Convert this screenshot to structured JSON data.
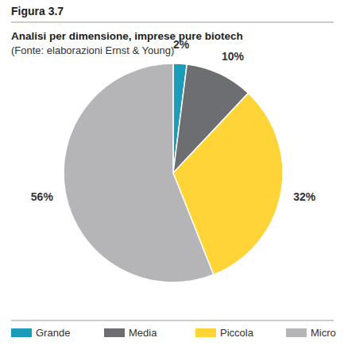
{
  "chart_data": {
    "type": "pie",
    "caption": "Figura 3.7",
    "title": "Analisi per dimensione, imprese pure biotech",
    "subtitle": "(Fonte: elaborazioni Ernst & Young)",
    "categories": [
      "Grande",
      "Media",
      "Piccola",
      "Micro"
    ],
    "values": [
      2,
      10,
      32,
      56
    ],
    "value_labels": [
      "2%",
      "10%",
      "32%",
      "56%"
    ],
    "colors": [
      "#1b9cb8",
      "#6d6e71",
      "#ffd436",
      "#b5b5b7"
    ],
    "data_labels": true,
    "legend": "bottom"
  }
}
